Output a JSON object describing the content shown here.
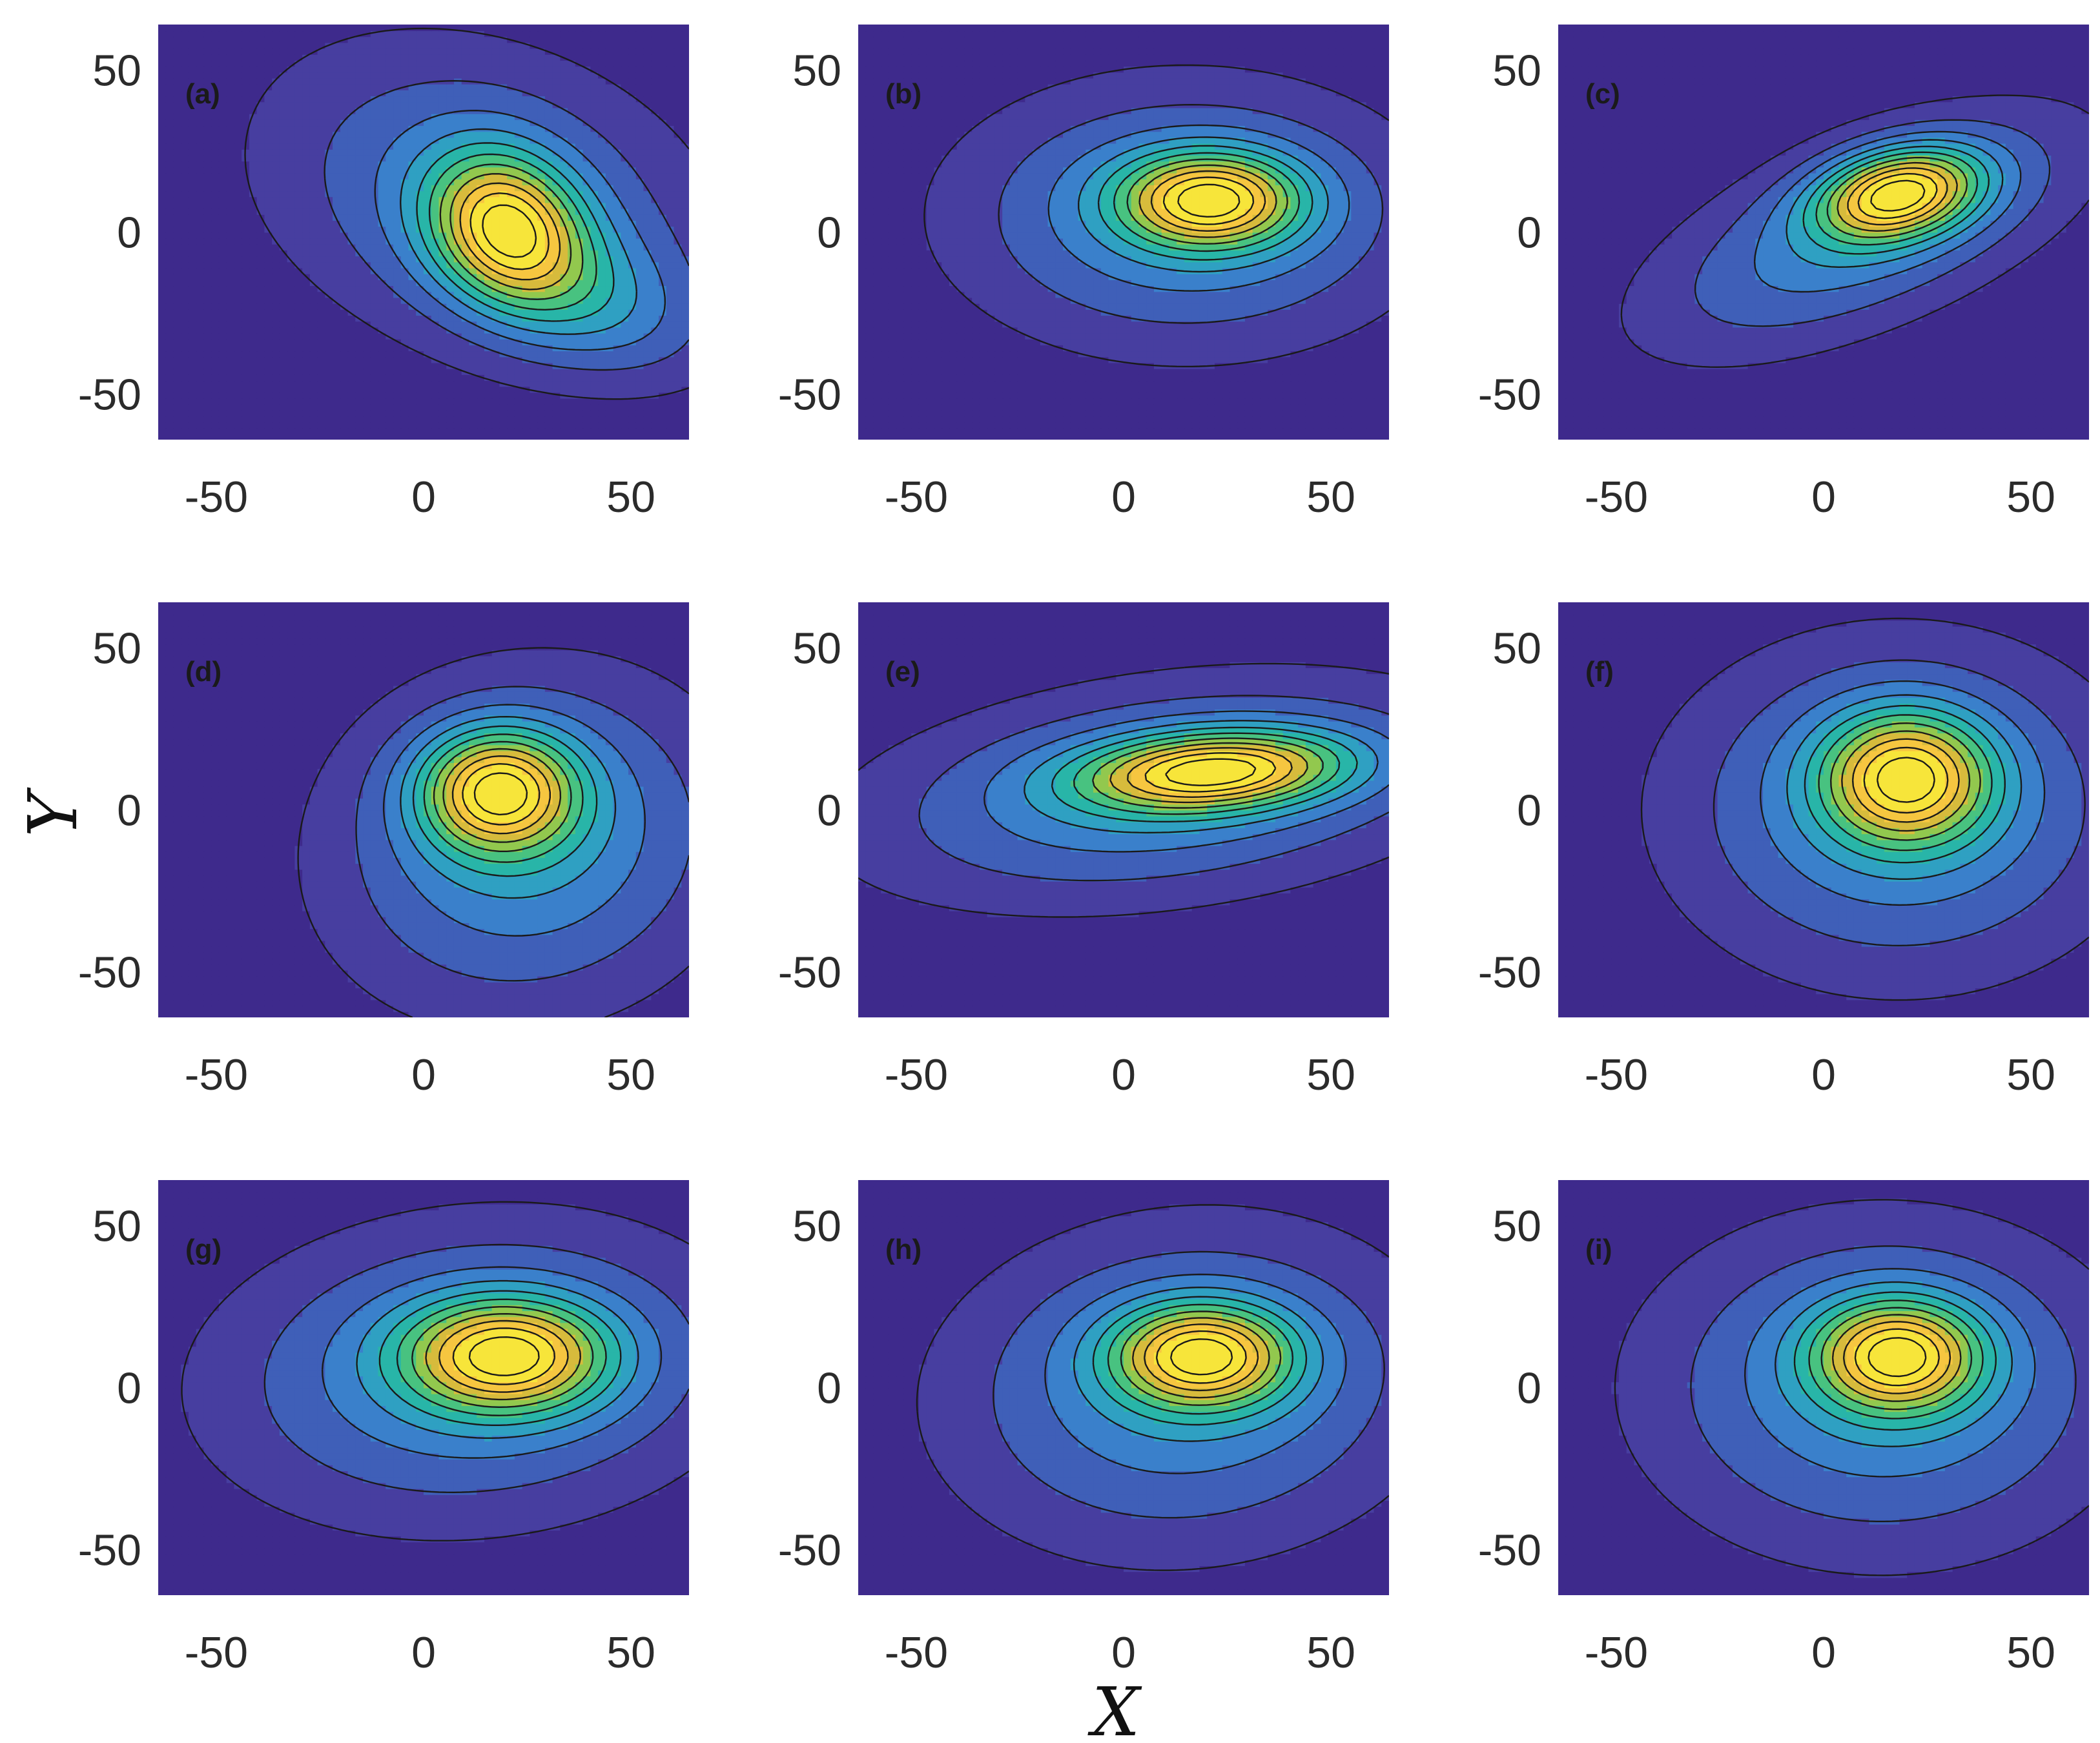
{
  "figure": {
    "xlabel": "X",
    "ylabel": "Y",
    "colormap": [
      "#3e2a8c",
      "#473ea0",
      "#3f5fb8",
      "#3a80cb",
      "#2fa0c2",
      "#28b5a8",
      "#48c280",
      "#92c84e",
      "#d7bb3c",
      "#f6c640",
      "#f7e53a"
    ]
  },
  "chart_data": [
    {
      "type": "contour",
      "panel_label": "(a)",
      "xlim": [
        -64,
        64
      ],
      "ylim": [
        -64,
        64
      ],
      "xticks": [
        -50,
        0,
        50
      ],
      "yticks": [
        -50,
        0,
        50
      ],
      "xtick_labels": [
        "-50",
        "0",
        "50"
      ],
      "ytick_labels": [
        "-50",
        "0",
        "50"
      ],
      "levels": 11,
      "peak": {
        "x": 20,
        "y": 0
      },
      "blobs": [
        {
          "x": 20,
          "y": 2,
          "amp": 1.0,
          "sx": 12,
          "sy": 16,
          "rot": 20
        },
        {
          "x": 38,
          "y": -20,
          "amp": 0.35,
          "sx": 22,
          "sy": 14,
          "rot": -30
        },
        {
          "x": 15,
          "y": 10,
          "amp": 0.45,
          "sx": 40,
          "sy": 30,
          "rot": -35
        }
      ]
    },
    {
      "type": "contour",
      "panel_label": "(b)",
      "xlim": [
        -64,
        64
      ],
      "ylim": [
        -64,
        64
      ],
      "xticks": [
        -50,
        0,
        50
      ],
      "yticks": [
        -50,
        0,
        50
      ],
      "xtick_labels": [
        "-50",
        "0",
        "50"
      ],
      "ytick_labels": [
        "-50",
        "0",
        "50"
      ],
      "levels": 11,
      "peak": {
        "x": 21,
        "y": 10
      },
      "blobs": [
        {
          "x": 21,
          "y": 10,
          "amp": 1.0,
          "sx": 15,
          "sy": 10,
          "rot": 0
        },
        {
          "x": 15,
          "y": 5,
          "amp": 0.5,
          "sx": 38,
          "sy": 28,
          "rot": 0
        }
      ]
    },
    {
      "type": "contour",
      "panel_label": "(c)",
      "xlim": [
        -64,
        64
      ],
      "ylim": [
        -64,
        64
      ],
      "xticks": [
        -50,
        0,
        50
      ],
      "yticks": [
        -50,
        0,
        50
      ],
      "xtick_labels": [
        "-50",
        "0",
        "50"
      ],
      "ytick_labels": [
        "-50",
        "0",
        "50"
      ],
      "levels": 11,
      "peak": {
        "x": 18,
        "y": 12
      },
      "blobs": [
        {
          "x": 18,
          "y": 12,
          "amp": 1.0,
          "sx": 14,
          "sy": 9,
          "rot": 20
        },
        {
          "x": 10,
          "y": 0,
          "amp": 0.45,
          "sx": 40,
          "sy": 18,
          "rot": 30
        }
      ]
    },
    {
      "type": "contour",
      "panel_label": "(d)",
      "xlim": [
        -64,
        64
      ],
      "ylim": [
        -64,
        64
      ],
      "xticks": [
        -50,
        0,
        50
      ],
      "yticks": [
        -50,
        0,
        50
      ],
      "xtick_labels": [
        "-50",
        "0",
        "50"
      ],
      "ytick_labels": [
        "-50",
        "0",
        "50"
      ],
      "levels": 11,
      "peak": {
        "x": 18,
        "y": 6
      },
      "blobs": [
        {
          "x": 18,
          "y": 6,
          "amp": 1.0,
          "sx": 13,
          "sy": 13,
          "rot": 0
        },
        {
          "x": 25,
          "y": -10,
          "amp": 0.5,
          "sx": 32,
          "sy": 36,
          "rot": -25
        }
      ]
    },
    {
      "type": "contour",
      "panel_label": "(e)",
      "xlim": [
        -64,
        64
      ],
      "ylim": [
        -64,
        64
      ],
      "xticks": [
        -50,
        0,
        50
      ],
      "yticks": [
        -50,
        0,
        50
      ],
      "xtick_labels": [
        "-50",
        "0",
        "50"
      ],
      "ytick_labels": [
        "-50",
        "0",
        "50"
      ],
      "levels": 11,
      "peak": {
        "x": 22,
        "y": 12
      },
      "blobs": [
        {
          "x": 22,
          "y": 12,
          "amp": 1.0,
          "sx": 22,
          "sy": 8,
          "rot": 5
        },
        {
          "x": 10,
          "y": 6,
          "amp": 0.5,
          "sx": 50,
          "sy": 22,
          "rot": 10
        }
      ]
    },
    {
      "type": "contour",
      "panel_label": "(f)",
      "xlim": [
        -64,
        64
      ],
      "ylim": [
        -64,
        64
      ],
      "xticks": [
        -50,
        0,
        50
      ],
      "yticks": [
        -50,
        0,
        50
      ],
      "xtick_labels": [
        "-50",
        "0",
        "50"
      ],
      "ytick_labels": [
        "-50",
        "0",
        "50"
      ],
      "levels": 11,
      "peak": {
        "x": 20,
        "y": 10
      },
      "blobs": [
        {
          "x": 20,
          "y": 10,
          "amp": 1.0,
          "sx": 14,
          "sy": 14,
          "rot": 0
        },
        {
          "x": 18,
          "y": 0,
          "amp": 0.5,
          "sx": 38,
          "sy": 36,
          "rot": 0
        }
      ]
    },
    {
      "type": "contour",
      "panel_label": "(g)",
      "xlim": [
        -64,
        64
      ],
      "ylim": [
        -64,
        64
      ],
      "xticks": [
        -50,
        0,
        50
      ],
      "yticks": [
        -50,
        0,
        50
      ],
      "xtick_labels": [
        "-50",
        "0",
        "50"
      ],
      "ytick_labels": [
        "-50",
        "0",
        "50"
      ],
      "levels": 11,
      "peak": {
        "x": 20,
        "y": 10
      },
      "blobs": [
        {
          "x": 20,
          "y": 10,
          "amp": 1.0,
          "sx": 17,
          "sy": 12,
          "rot": 0
        },
        {
          "x": 12,
          "y": 5,
          "amp": 0.5,
          "sx": 44,
          "sy": 32,
          "rot": 10
        }
      ]
    },
    {
      "type": "contour",
      "panel_label": "(h)",
      "xlim": [
        -64,
        64
      ],
      "ylim": [
        -64,
        64
      ],
      "xticks": [
        -50,
        0,
        50
      ],
      "yticks": [
        -50,
        0,
        50
      ],
      "xtick_labels": [
        "-50",
        "0",
        "50"
      ],
      "ytick_labels": [
        "-50",
        "0",
        "50"
      ],
      "levels": 11,
      "peak": {
        "x": 19,
        "y": 10
      },
      "blobs": [
        {
          "x": 19,
          "y": 10,
          "amp": 1.0,
          "sx": 15,
          "sy": 11,
          "rot": 0
        },
        {
          "x": 15,
          "y": 0,
          "amp": 0.5,
          "sx": 40,
          "sy": 34,
          "rot": 15
        }
      ]
    },
    {
      "type": "contour",
      "panel_label": "(i)",
      "xlim": [
        -64,
        64
      ],
      "ylim": [
        -64,
        64
      ],
      "xticks": [
        -50,
        0,
        50
      ],
      "yticks": [
        -50,
        0,
        50
      ],
      "xtick_labels": [
        "-50",
        "0",
        "50"
      ],
      "ytick_labels": [
        "-50",
        "0",
        "50"
      ],
      "levels": 11,
      "peak": {
        "x": 18,
        "y": 10
      },
      "blobs": [
        {
          "x": 18,
          "y": 10,
          "amp": 1.0,
          "sx": 14,
          "sy": 12,
          "rot": 0
        },
        {
          "x": 14,
          "y": 0,
          "amp": 0.5,
          "sx": 40,
          "sy": 36,
          "rot": 0
        }
      ]
    }
  ]
}
